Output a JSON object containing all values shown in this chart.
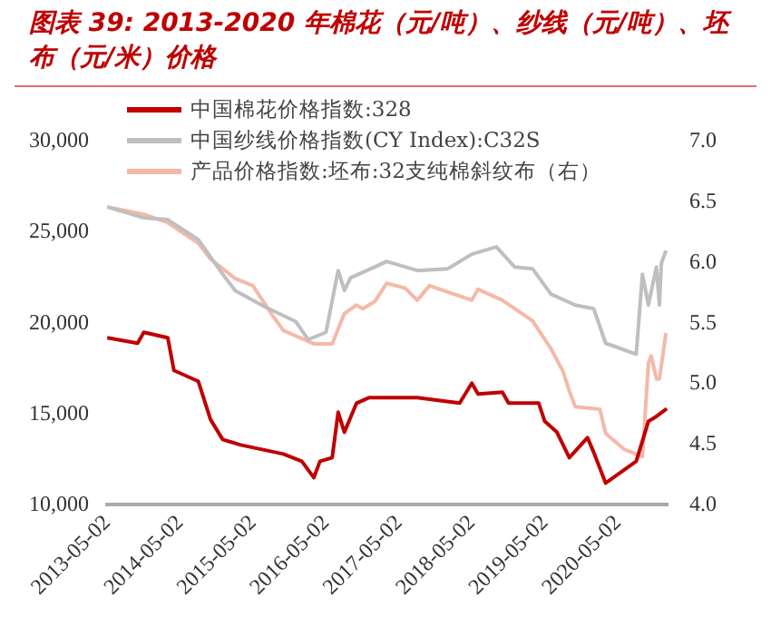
{
  "chart_data": {
    "type": "line",
    "title": "图表 39: 2013-2020 年棉花（元/吨）、纱线（元/吨）、坯布（元/米）价格",
    "xlim": [
      "2013-05-01",
      "2021-01-05"
    ],
    "xticks": [
      "2013-05-02",
      "2014-05-02",
      "2015-05-02",
      "2016-05-02",
      "2017-05-02",
      "2018-05-02",
      "2019-05-02",
      "2020-05-02"
    ],
    "ylim": [
      10000,
      30000
    ],
    "yticks": [
      {
        "value": 10000,
        "label": "10,000"
      },
      {
        "value": 15000,
        "label": "15,000"
      },
      {
        "value": 20000,
        "label": "20,000"
      },
      {
        "value": 25000,
        "label": "25,000"
      },
      {
        "value": 30000,
        "label": "30,000"
      }
    ],
    "y2lim": [
      4,
      7
    ],
    "y2ticks": [
      {
        "value": 4,
        "label": "4.0"
      },
      {
        "value": 4.5,
        "label": "4.5"
      },
      {
        "value": 5,
        "label": "5.0"
      },
      {
        "value": 5.5,
        "label": "5.5"
      },
      {
        "value": 6,
        "label": "6.0"
      },
      {
        "value": 6.5,
        "label": "6.5"
      },
      {
        "value": 7,
        "label": "7.0"
      }
    ],
    "grid": false,
    "legend": "top left",
    "marker": "none",
    "line_style": "solid",
    "series": [
      {
        "name": "中国棉花价格指数:328",
        "color": "#c00000",
        "x": [
          "2013-05-02",
          "2013-10",
          "2013-11",
          "2014-03",
          "2014-04",
          "2014-08",
          "2014-10",
          "2014-12",
          "2015-03",
          "2015-10",
          "2016-01",
          "2016-03",
          "2016-04",
          "2016-06",
          "2016-07",
          "2016-08",
          "2016-10",
          "2016-12",
          "2017-08",
          "2018-03",
          "2018-05",
          "2018-06",
          "2018-10",
          "2018-11",
          "2019-04",
          "2019-05",
          "2019-07",
          "2019-09",
          "2019-12",
          "2020-01",
          "2020-03",
          "2020-08",
          "2020-10",
          "2020-11",
          "2021-01"
        ],
        "values": [
          19200,
          18900,
          19500,
          19200,
          17400,
          16800,
          14700,
          13600,
          13300,
          12800,
          12400,
          11500,
          12400,
          12600,
          15100,
          14000,
          15600,
          15900,
          15900,
          15600,
          16700,
          16100,
          16200,
          15600,
          15600,
          14600,
          14000,
          12600,
          13700,
          12900,
          11200,
          12400,
          14600,
          14800,
          15300
        ]
      },
      {
        "name": "中国纱线价格指数(CY Index):C32S",
        "color": "#bfbfbf",
        "x": [
          "2013-05-02",
          "2013-11",
          "2014-03",
          "2014-08",
          "2014-12",
          "2015-02",
          "2015-07",
          "2015-12",
          "2016-02",
          "2016-05",
          "2016-07",
          "2016-08",
          "2016-09",
          "2017-01",
          "2017-03",
          "2017-08",
          "2018-01",
          "2018-05",
          "2018-09",
          "2018-12",
          "2019-03",
          "2019-06",
          "2019-10",
          "2020-01",
          "2020-03",
          "2020-08",
          "2020-09",
          "2020-10",
          "2020-11-10",
          "2020-11-25",
          "2020-12-05",
          "2020-12-28"
        ],
        "values": [
          26400,
          25800,
          25700,
          24600,
          22700,
          21800,
          20900,
          20100,
          19100,
          19500,
          22900,
          21800,
          22500,
          23100,
          23400,
          22900,
          23000,
          23800,
          24200,
          23100,
          23000,
          21600,
          21000,
          20800,
          18900,
          18300,
          22700,
          21000,
          23100,
          21000,
          23300,
          24000
        ]
      },
      {
        "name": "产品价格指数:坯布:32支纯棉斜纹布（右）",
        "color": "#f4b9a8",
        "axis": "y2",
        "x": [
          "2013-05-02",
          "2013-11",
          "2014-03",
          "2014-08",
          "2014-10",
          "2015-02",
          "2015-05",
          "2015-08",
          "2015-10",
          "2016-03",
          "2016-06",
          "2016-08",
          "2016-10",
          "2016-11",
          "2017-01",
          "2017-03",
          "2017-06",
          "2017-08",
          "2017-10",
          "2018-05",
          "2018-06",
          "2018-10",
          "2019-03",
          "2019-06",
          "2019-08",
          "2019-09",
          "2019-10",
          "2020-02",
          "2020-03",
          "2020-06",
          "2020-09",
          "2020-10-01",
          "2020-10-15",
          "2020-11-10",
          "2020-11-25",
          "2020-12-28"
        ],
        "values": [
          6.46,
          6.4,
          6.33,
          6.16,
          6.03,
          5.87,
          5.81,
          5.58,
          5.44,
          5.33,
          5.33,
          5.58,
          5.65,
          5.62,
          5.68,
          5.83,
          5.79,
          5.69,
          5.81,
          5.69,
          5.78,
          5.69,
          5.52,
          5.29,
          5.1,
          4.94,
          4.81,
          4.79,
          4.59,
          4.46,
          4.4,
          5.17,
          5.23,
          5.04,
          5.04,
          5.42
        ]
      }
    ]
  }
}
